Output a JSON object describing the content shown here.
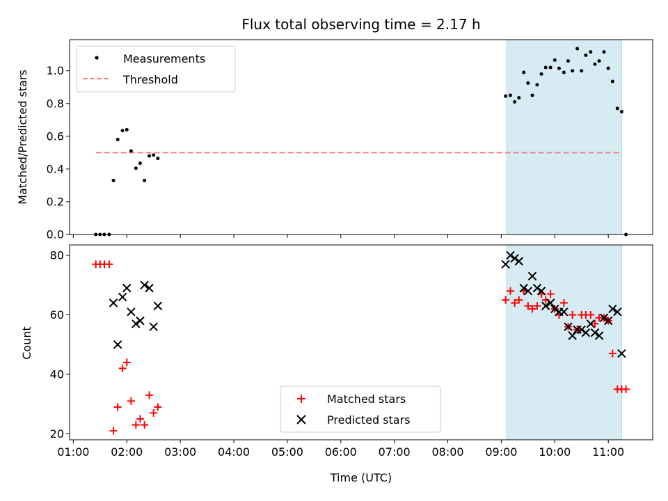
{
  "chart_data": [
    {
      "type": "scatter",
      "title": "Flux total observing time = 2.17 h",
      "ylabel": "Matched/Predicted stars",
      "xlabel": "",
      "x_unit": "hours (UTC)",
      "xlim": [
        0.93,
        11.83
      ],
      "ylim": [
        0,
        1.19
      ],
      "yticks": [
        0.0,
        0.2,
        0.4,
        0.6,
        0.8,
        1.0
      ],
      "ytick_labels": [
        "0.0",
        "0.2",
        "0.4",
        "0.6",
        "0.8",
        "1.0"
      ],
      "grid": false,
      "legend_position": "top-left",
      "shaded_interval": [
        9.1,
        11.25
      ],
      "shade_color": "#add8e6",
      "threshold": {
        "name": "Threshold",
        "y": 0.5,
        "x": [
          1.42,
          11.25
        ],
        "color": "#f08080",
        "style": "dashed"
      },
      "series": [
        {
          "name": "Measurements",
          "color": "#000000",
          "marker": "dot",
          "x": [
            1.42,
            1.5,
            1.58,
            1.67,
            1.75,
            1.83,
            1.92,
            2.0,
            2.08,
            2.17,
            2.25,
            2.33,
            2.42,
            2.5,
            2.58,
            9.08,
            9.17,
            9.25,
            9.33,
            9.42,
            9.5,
            9.58,
            9.67,
            9.75,
            9.83,
            9.92,
            10.0,
            10.08,
            10.17,
            10.25,
            10.33,
            10.42,
            10.5,
            10.58,
            10.67,
            10.75,
            10.83,
            10.92,
            11.0,
            11.08,
            11.17,
            11.25,
            11.33
          ],
          "y": [
            0.0,
            0.0,
            0.0,
            0.0,
            0.33,
            0.58,
            0.635,
            0.64,
            0.51,
            0.405,
            0.435,
            0.33,
            0.48,
            0.485,
            0.465,
            0.845,
            0.85,
            0.81,
            0.835,
            0.99,
            0.925,
            0.85,
            0.915,
            0.98,
            1.02,
            1.02,
            1.065,
            1.015,
            0.99,
            1.06,
            1.0,
            1.135,
            1.0,
            1.095,
            1.115,
            1.04,
            1.06,
            1.115,
            1.015,
            0.935,
            0.77,
            0.75,
            0.0
          ]
        }
      ]
    },
    {
      "type": "scatter",
      "xlabel": "Time (UTC)",
      "ylabel": "Count",
      "x_unit": "hours (UTC)",
      "xlim": [
        0.93,
        11.83
      ],
      "ylim": [
        18,
        83.5
      ],
      "yticks": [
        20,
        40,
        60,
        80
      ],
      "xticks": [
        1,
        2,
        3,
        4,
        5,
        6,
        7,
        8,
        9,
        10,
        11
      ],
      "xtick_labels": [
        "01:00",
        "02:00",
        "03:00",
        "04:00",
        "05:00",
        "06:00",
        "07:00",
        "08:00",
        "09:00",
        "10:00",
        "11:00"
      ],
      "grid": false,
      "legend_position": "bottom-center",
      "shaded_interval": [
        9.1,
        11.25
      ],
      "shade_color": "#add8e6",
      "series": [
        {
          "name": "Matched stars",
          "color": "#ff0000",
          "marker": "plus",
          "x": [
            1.42,
            1.5,
            1.58,
            1.67,
            1.75,
            1.83,
            1.92,
            2.0,
            2.08,
            2.17,
            2.25,
            2.33,
            2.42,
            2.5,
            2.58,
            9.08,
            9.17,
            9.25,
            9.33,
            9.42,
            9.5,
            9.58,
            9.67,
            9.75,
            9.83,
            9.92,
            10.0,
            10.08,
            10.17,
            10.25,
            10.33,
            10.42,
            10.5,
            10.58,
            10.67,
            10.75,
            10.83,
            10.92,
            11.0,
            11.08,
            11.17,
            11.25,
            11.33
          ],
          "y": [
            77,
            77,
            77,
            77,
            21,
            29,
            42,
            44,
            31,
            23,
            25,
            23,
            33,
            27,
            29,
            65,
            68,
            64,
            65,
            68,
            63,
            62,
            63,
            67,
            65,
            67,
            62,
            60,
            64,
            56,
            60,
            55,
            60,
            60,
            60,
            57,
            59,
            59,
            58,
            47,
            35,
            35,
            35
          ]
        },
        {
          "name": "Predicted stars",
          "color": "#000000",
          "marker": "x",
          "x": [
            1.75,
            1.83,
            1.92,
            2.0,
            2.08,
            2.17,
            2.25,
            2.33,
            2.42,
            2.5,
            2.58,
            9.08,
            9.17,
            9.25,
            9.33,
            9.42,
            9.5,
            9.58,
            9.67,
            9.75,
            9.83,
            9.92,
            10.0,
            10.08,
            10.17,
            10.25,
            10.33,
            10.42,
            10.5,
            10.58,
            10.67,
            10.75,
            10.83,
            10.92,
            11.0,
            11.08,
            11.17,
            11.25
          ],
          "y": [
            64,
            50,
            66,
            69,
            61,
            57,
            58,
            70,
            69,
            56,
            63,
            77,
            80,
            79,
            78,
            69,
            68,
            73,
            69,
            68,
            63,
            64,
            62,
            61,
            61,
            56,
            53,
            55,
            55,
            54,
            57,
            54,
            53,
            59,
            58,
            62,
            61,
            47
          ]
        }
      ]
    }
  ]
}
